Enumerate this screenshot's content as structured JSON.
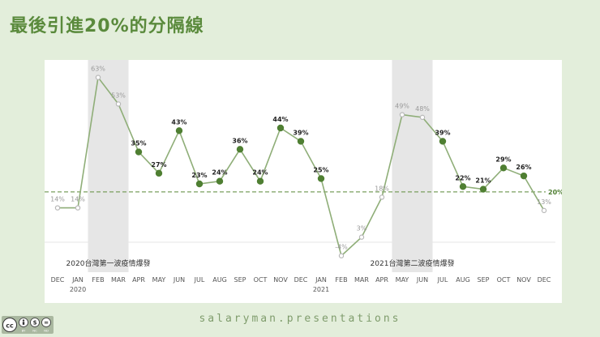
{
  "title": "最後引進20%的分隔線",
  "footer": "salaryman.presentations",
  "license": {
    "icons": [
      "cc-icon",
      "by-icon",
      "nc-icon",
      "nd-icon"
    ],
    "labels": [
      "BY",
      "NC",
      "ND"
    ]
  },
  "colors": {
    "background": "#e3eedb",
    "line": "#8fae78",
    "highlight_point": "#4f7f32",
    "dim_point": "#b8b8b8",
    "threshold": "#7a9f5f",
    "shade": "#e6e6e6",
    "title": "#5a8a3c"
  },
  "chart_data": {
    "type": "line",
    "x": [
      "DEC",
      "JAN",
      "FEB",
      "MAR",
      "APR",
      "MAY",
      "JUN",
      "JUL",
      "AUG",
      "SEP",
      "OCT",
      "NOV",
      "DEC",
      "JAN",
      "FEB",
      "MAR",
      "APR",
      "MAY",
      "JUN",
      "JUL",
      "AUG",
      "SEP",
      "OCT",
      "NOV",
      "DEC"
    ],
    "year_labels": [
      {
        "index": 1,
        "text": "2020"
      },
      {
        "index": 13,
        "text": "2021"
      }
    ],
    "series": [
      {
        "values": [
          14,
          14,
          63,
          53,
          35,
          27,
          43,
          23,
          24,
          36,
          24,
          44,
          39,
          25,
          -4,
          3,
          18,
          49,
          48,
          39,
          22,
          21,
          29,
          26,
          13
        ],
        "labels": [
          "14%",
          "14%",
          "63%",
          "53%",
          "35%",
          "27%",
          "43%",
          "23%",
          "24%",
          "36%",
          "24%",
          "44%",
          "39%",
          "25%",
          "-4%",
          "3%",
          "18%",
          "49%",
          "48%",
          "39%",
          "22%",
          "21%",
          "29%",
          "26%",
          "13%"
        ],
        "above_threshold": [
          false,
          false,
          false,
          false,
          true,
          true,
          true,
          true,
          true,
          true,
          true,
          true,
          true,
          true,
          false,
          false,
          false,
          false,
          false,
          true,
          true,
          true,
          true,
          true,
          false
        ]
      }
    ],
    "threshold": {
      "value": 20,
      "label": "20%"
    },
    "shaded_periods": [
      {
        "start": 2,
        "end": 3,
        "label": "2020台灣第一波疫情爆發"
      },
      {
        "start": 17,
        "end": 18,
        "label": "2021台灣第二波疫情爆發"
      }
    ],
    "ylim": [
      -5,
      65
    ],
    "grid": false,
    "legend": "none"
  }
}
